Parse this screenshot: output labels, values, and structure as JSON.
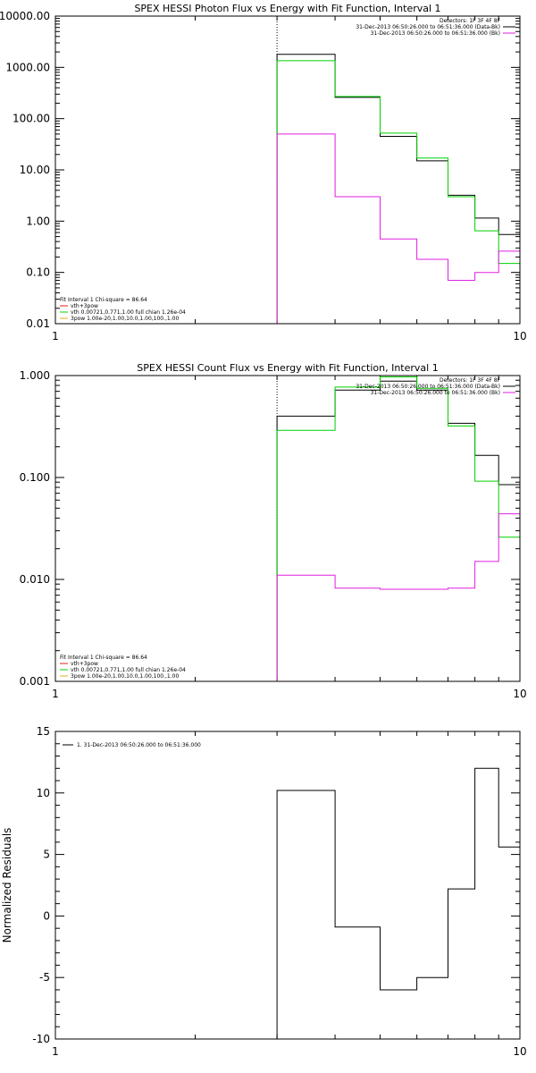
{
  "figure": "SPEX HESSI spectral fit plots",
  "chart_data": [
    {
      "type": "line",
      "title": "SPEX HESSI Photon Flux vs Energy with Fit Function, Interval 1",
      "xlabel": "",
      "ylabel": "",
      "x_scale": "log",
      "y_scale": "log",
      "xlim": [
        1,
        10
      ],
      "ylim": [
        0.01,
        10000
      ],
      "x_tick_labels": [
        "1",
        "10"
      ],
      "y_tick_labels": [
        "0.01",
        "0.10",
        "1.00",
        "10.00",
        "100.00",
        "1000.00",
        "10000.00"
      ],
      "edges": [
        3,
        4,
        5,
        6,
        7,
        8,
        9,
        10
      ],
      "reference_line_x": 3,
      "series": [
        {
          "name": "",
          "color": "#000000",
          "values": [
            1800,
            260,
            45,
            15,
            3.2,
            1.15,
            0.55
          ]
        },
        {
          "name": "",
          "color": "#00d000",
          "values": [
            1350,
            270,
            52,
            17,
            3.0,
            0.65,
            0.15
          ]
        },
        {
          "name": "",
          "color": "#e020e0",
          "values": [
            50,
            3.0,
            0.45,
            0.18,
            0.07,
            0.1,
            0.26
          ]
        }
      ],
      "legend_top": [
        {
          "text": "Detectors: 1F 3F 4F 8F",
          "color": "#000000"
        },
        {
          "text": "31-Dec-2013 06:50:26.000 to 06:51:36.000 (Data-Bk)",
          "color": "#000000"
        },
        {
          "text": "31-Dec-2013 06:50:26.000 to 06:51:36.000 (Bk)",
          "color": "#e020e0"
        }
      ],
      "legend_bottom": [
        {
          "text": "Fit Interval 1    Chi-square = 86.64",
          "color": null
        },
        {
          "text": "vth+3pow",
          "color": "#e02020"
        },
        {
          "text": "vth 0.00721,0.771,1.00   full chian 1.26e-04",
          "color": "#00d000"
        },
        {
          "text": "3pow 1.00e-20,1.00,10.0,1.00,100.,1.00",
          "color": "#d8b020"
        }
      ]
    },
    {
      "type": "line",
      "title": "SPEX HESSI Count Flux vs Energy with Fit Function, Interval 1",
      "xlabel": "",
      "ylabel": "",
      "x_scale": "log",
      "y_scale": "log",
      "xlim": [
        1,
        10
      ],
      "ylim": [
        0.001,
        1.0
      ],
      "x_tick_labels": [
        "1",
        "10"
      ],
      "y_tick_labels": [
        "0.001",
        "0.010",
        "0.100",
        "1.000"
      ],
      "edges": [
        3,
        4,
        5,
        6,
        7,
        8,
        9,
        10
      ],
      "reference_line_x": 3,
      "series": [
        {
          "name": "",
          "color": "#000000",
          "values": [
            0.4,
            0.72,
            0.88,
            0.72,
            0.34,
            0.165,
            0.085
          ]
        },
        {
          "name": "",
          "color": "#00d000",
          "values": [
            0.29,
            0.77,
            0.97,
            0.75,
            0.32,
            0.092,
            0.026
          ]
        },
        {
          "name": "",
          "color": "#e020e0",
          "values": [
            0.011,
            0.0082,
            0.008,
            0.008,
            0.0082,
            0.015,
            0.044
          ]
        }
      ],
      "legend_top": [
        {
          "text": "Detectors: 1F 3F 4F 8F",
          "color": "#000000"
        },
        {
          "text": "31-Dec-2013 06:50:26.000 to 06:51:36.000 (Data-Bk)",
          "color": "#000000"
        },
        {
          "text": "31-Dec-2013 06:50:26.000 to 06:51:36.000 (Bk)",
          "color": "#e020e0"
        }
      ],
      "legend_bottom": [
        {
          "text": "Fit Interval 1    Chi-square = 86.64",
          "color": null
        },
        {
          "text": "vth+3pow",
          "color": "#e02020"
        },
        {
          "text": "vth 0.00721,0.771,1.00   full chian 1.26e-04",
          "color": "#00d000"
        },
        {
          "text": "3pow 1.00e-20,1.00,10.0,1.00,100.,1.00",
          "color": "#d8b020"
        }
      ]
    },
    {
      "type": "line",
      "title": "",
      "xlabel": "",
      "ylabel": "Normalized Residuals",
      "x_scale": "log",
      "y_scale": "linear",
      "xlim": [
        1,
        10
      ],
      "ylim": [
        -10,
        15
      ],
      "x_tick_labels": [
        "1",
        "10"
      ],
      "y_tick_labels": [
        "-10",
        "-5",
        "0",
        "5",
        "10",
        "15"
      ],
      "y_tick_values": [
        -10,
        -5,
        0,
        5,
        10,
        15
      ],
      "edges": [
        3,
        4,
        5,
        6,
        7,
        8,
        9,
        10
      ],
      "reference_line_x": null,
      "series": [
        {
          "name": "1. 31-Dec-2013 06:50:26.000 to 06:51:36.000",
          "color": "#000000",
          "values": [
            10.2,
            -0.9,
            -6.0,
            -5.0,
            2.2,
            12.0,
            5.6
          ]
        }
      ],
      "legend_top": [
        {
          "text": "1. 31-Dec-2013 06:50:26.000 to 06:51:36.000",
          "color": "#000000"
        }
      ],
      "legend_bottom": []
    }
  ]
}
